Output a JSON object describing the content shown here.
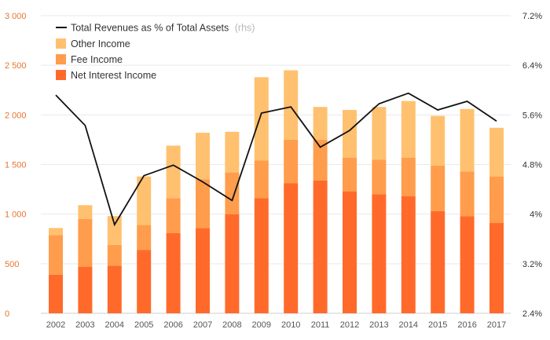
{
  "chart_data": {
    "type": "bar",
    "stacked": true,
    "categories": [
      "2002",
      "2003",
      "2004",
      "2005",
      "2006",
      "2007",
      "2008",
      "2009",
      "2010",
      "2011",
      "2012",
      "2013",
      "2014",
      "2015",
      "2016",
      "2017"
    ],
    "series": [
      {
        "name": "Net Interest Income",
        "color": "#ff6a2b",
        "values": [
          390,
          470,
          480,
          640,
          810,
          860,
          1000,
          1160,
          1310,
          1340,
          1230,
          1200,
          1180,
          1030,
          980,
          910
        ]
      },
      {
        "name": "Fee Income",
        "color": "#ff9d4c",
        "values": [
          400,
          480,
          210,
          250,
          350,
          490,
          420,
          380,
          440,
          410,
          340,
          350,
          390,
          460,
          450,
          470
        ]
      },
      {
        "name": "Other Income",
        "color": "#ffc16f",
        "values": [
          70,
          140,
          290,
          490,
          530,
          470,
          410,
          840,
          700,
          330,
          480,
          530,
          570,
          500,
          630,
          490
        ]
      }
    ],
    "line_series": {
      "name": "Total Revenues as % of Total Assets",
      "name_note": "(rhs)",
      "color": "#111111",
      "axis": "right",
      "values": [
        5.92,
        5.43,
        3.83,
        4.62,
        4.79,
        4.52,
        4.22,
        5.63,
        5.73,
        5.08,
        5.35,
        5.78,
        5.95,
        5.68,
        5.82,
        5.5
      ]
    },
    "y_left": {
      "min": 0,
      "max": 3000,
      "ticks": [
        "0",
        "500",
        "1 000",
        "1 500",
        "2 000",
        "2 500",
        "3 000"
      ]
    },
    "y_right": {
      "min": 2.4,
      "max": 7.2,
      "ticks": [
        "2.4%",
        "3.2%",
        "4%",
        "4.8%",
        "5.6%",
        "6.4%",
        "7.2%"
      ]
    },
    "grid": true,
    "legend_position": "top-left"
  }
}
